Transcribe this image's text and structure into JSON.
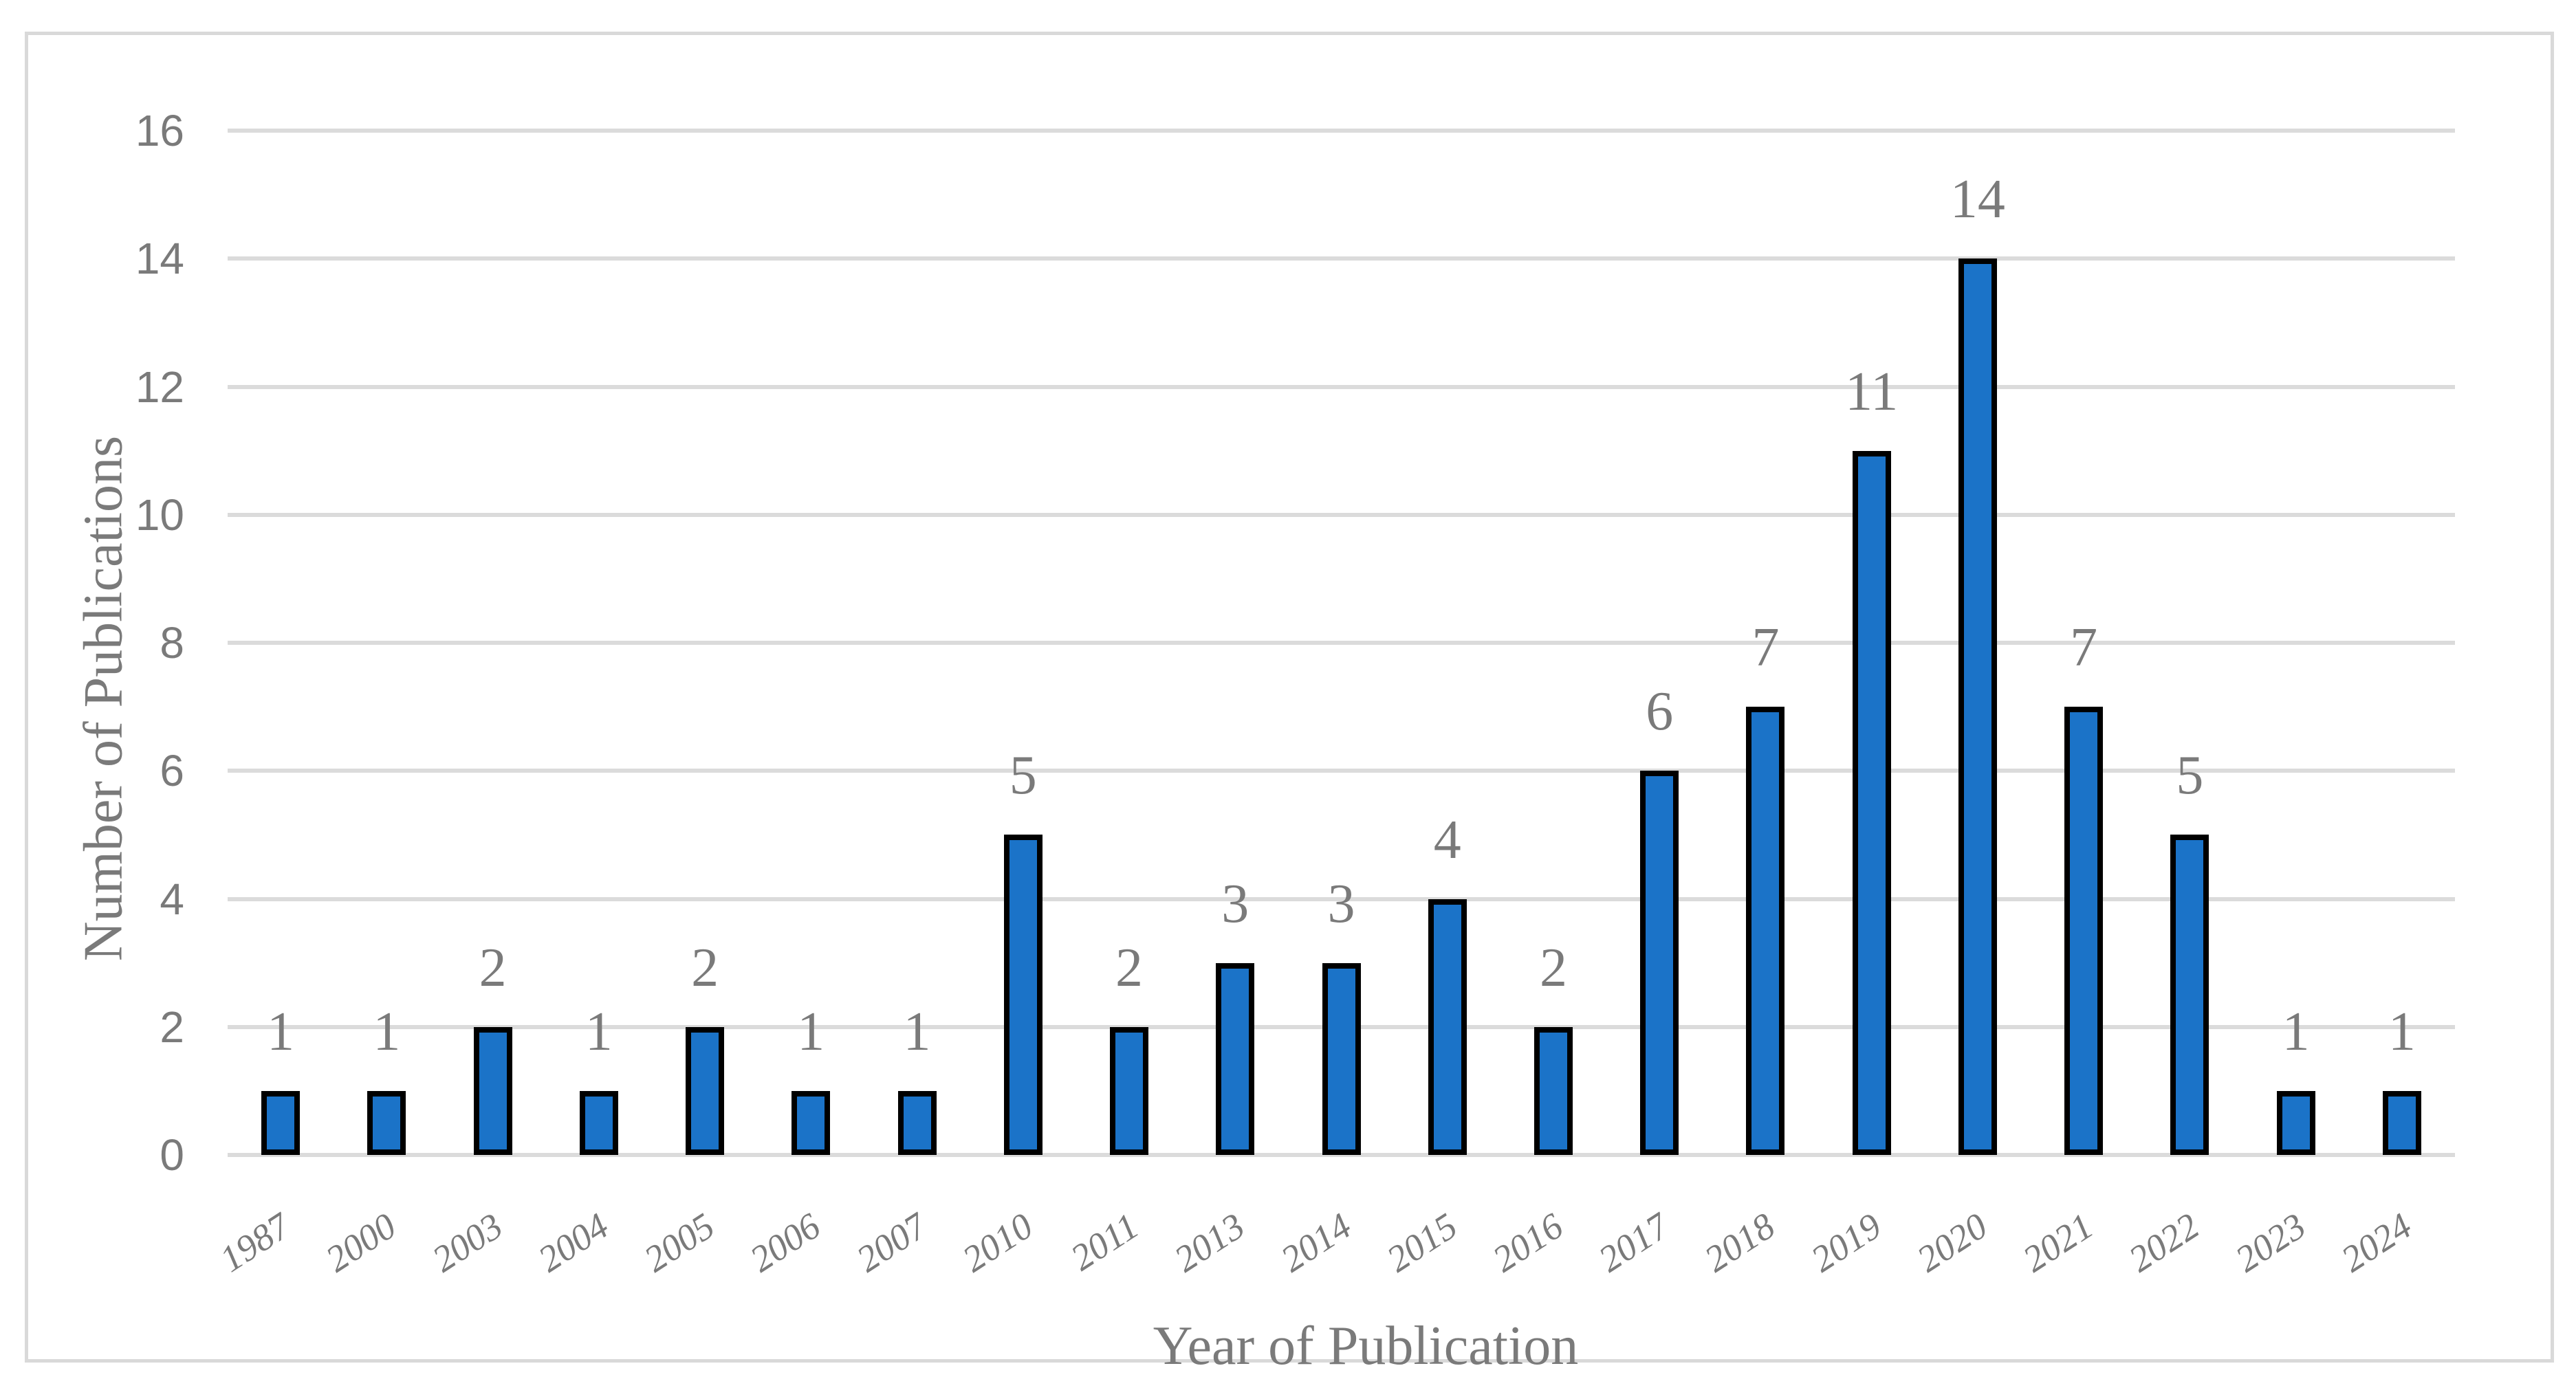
{
  "chart_data": {
    "type": "bar",
    "title": "",
    "xlabel": "Year of Publication",
    "ylabel": "Number of Publications",
    "categories": [
      "1987",
      "2000",
      "2003",
      "2004",
      "2005",
      "2006",
      "2007",
      "2010",
      "2011",
      "2013",
      "2014",
      "2015",
      "2016",
      "2017",
      "2018",
      "2019",
      "2020",
      "2021",
      "2022",
      "2023",
      "2024"
    ],
    "values": [
      1,
      1,
      2,
      1,
      2,
      1,
      1,
      5,
      2,
      3,
      3,
      4,
      2,
      6,
      7,
      11,
      14,
      7,
      5,
      1,
      1
    ],
    "data_labels": [
      1,
      1,
      2,
      1,
      2,
      1,
      1,
      5,
      2,
      3,
      3,
      4,
      2,
      6,
      7,
      11,
      14,
      7,
      5,
      1,
      1
    ],
    "ylim": [
      0,
      16
    ],
    "yticks": [
      0,
      2,
      4,
      6,
      8,
      10,
      12,
      14,
      16
    ],
    "grid": true,
    "legend": "none",
    "bar_series_name": "Number of Publications",
    "colors": {
      "bar_fill": "#1b73c8",
      "bar_border": "#000000",
      "gridline": "#dbdbdb",
      "frame_border": "#d9d9d9",
      "text": "#7a7a7a",
      "background": "#ffffff"
    }
  }
}
